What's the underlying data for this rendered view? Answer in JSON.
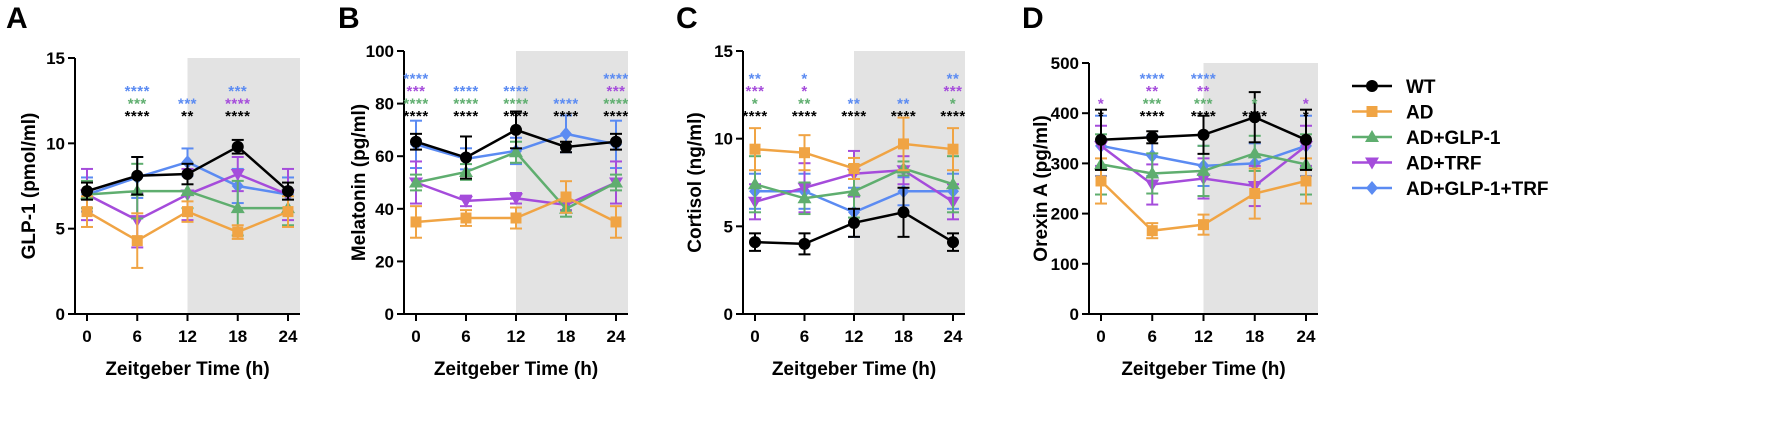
{
  "colors": {
    "WT": "#000000",
    "AD": "#F0A444",
    "AD+GLP-1": "#5FAE6F",
    "AD+TRF": "#A54CDB",
    "AD+GLP-1+TRF": "#5B8BF2",
    "shade": "#e3e3e3"
  },
  "legend": {
    "items": [
      {
        "key": "WT",
        "label": "WT",
        "marker": "circle"
      },
      {
        "key": "AD",
        "label": "AD",
        "marker": "square"
      },
      {
        "key": "AD+GLP-1",
        "label": "AD+GLP-1",
        "marker": "triangle-up"
      },
      {
        "key": "AD+TRF",
        "label": "AD+TRF",
        "marker": "triangle-down"
      },
      {
        "key": "AD+GLP-1+TRF",
        "label": "AD+GLP-1+TRF",
        "marker": "diamond"
      }
    ]
  },
  "chart_data": [
    {
      "panel": "A",
      "type": "line",
      "xlabel": "Zeitgeber Time (h)",
      "ylabel": "GLP-1 (pmol/ml)",
      "x": [
        0,
        6,
        12,
        18,
        24
      ],
      "ylim": [
        0,
        15
      ],
      "yticks": [
        0,
        5,
        10,
        15
      ],
      "shaded_x": [
        12,
        24
      ],
      "series": [
        {
          "name": "WT",
          "values": [
            7.2,
            8.1,
            8.2,
            9.8,
            7.2
          ],
          "errors": [
            0.5,
            1.1,
            0.6,
            0.4,
            0.5
          ],
          "marker": "circle"
        },
        {
          "name": "AD",
          "values": [
            6.0,
            4.3,
            6.0,
            4.8,
            6.0
          ],
          "errors": [
            0.9,
            1.6,
            0.6,
            0.4,
            0.9
          ],
          "marker": "square"
        },
        {
          "name": "AD+GLP-1",
          "values": [
            7.0,
            7.2,
            7.2,
            6.2,
            6.2
          ],
          "errors": [
            0.8,
            1.6,
            1.0,
            1.6,
            1.0
          ],
          "marker": "triangle-up"
        },
        {
          "name": "AD+TRF",
          "values": [
            7.0,
            5.5,
            7.0,
            8.2,
            7.0
          ],
          "errors": [
            1.5,
            1.6,
            1.5,
            1.0,
            1.5
          ],
          "marker": "triangle-down"
        },
        {
          "name": "AD+GLP-1+TRF",
          "values": [
            7.0,
            8.0,
            8.9,
            7.5,
            7.0
          ],
          "errors": [
            1.0,
            1.2,
            0.8,
            1.0,
            1.0
          ],
          "marker": "diamond"
        }
      ],
      "stars": [
        {
          "x": 6,
          "lines": [
            {
              "s": "****",
              "series": "AD+GLP-1+TRF"
            },
            {
              "s": "***",
              "series": "AD+GLP-1"
            },
            {
              "s": "****",
              "series": "WT"
            }
          ]
        },
        {
          "x": 12,
          "lines": [
            {
              "s": "***",
              "series": "AD+GLP-1+TRF"
            },
            {
              "s": "**",
              "series": "WT"
            }
          ]
        },
        {
          "x": 18,
          "lines": [
            {
              "s": "***",
              "series": "AD+GLP-1+TRF"
            },
            {
              "s": "****",
              "series": "AD+TRF"
            },
            {
              "s": "****",
              "series": "WT"
            }
          ]
        }
      ]
    },
    {
      "panel": "B",
      "type": "line",
      "xlabel": "Zeitgeber Time (h)",
      "ylabel": "Melatonin (pg/ml)",
      "x": [
        0,
        6,
        12,
        18,
        24
      ],
      "ylim": [
        0,
        100
      ],
      "yticks": [
        0,
        20,
        40,
        60,
        80,
        100
      ],
      "shaded_x": [
        12,
        24
      ],
      "series": [
        {
          "name": "WT",
          "values": [
            65.5,
            59.5,
            70.0,
            63.5,
            65.5
          ],
          "errors": [
            3,
            8,
            7,
            2,
            3
          ],
          "marker": "circle"
        },
        {
          "name": "AD",
          "values": [
            35,
            36.5,
            36.5,
            44.5,
            35
          ],
          "errors": [
            6,
            3,
            4,
            6,
            6
          ],
          "marker": "square"
        },
        {
          "name": "AD+GLP-1",
          "values": [
            50,
            54,
            61.5,
            40,
            50
          ],
          "errors": [
            3,
            3,
            4,
            3,
            3
          ],
          "marker": "triangle-up"
        },
        {
          "name": "AD+TRF",
          "values": [
            50,
            43,
            44,
            41.5,
            50
          ],
          "errors": [
            8,
            2,
            2,
            2,
            8
          ],
          "marker": "triangle-down"
        },
        {
          "name": "AD+GLP-1+TRF",
          "values": [
            64.5,
            59,
            62,
            68.5,
            64.5
          ],
          "errors": [
            9,
            4,
            5,
            7,
            9
          ],
          "marker": "diamond"
        }
      ],
      "stars": [
        {
          "x": 0,
          "lines": [
            {
              "s": "****",
              "series": "AD+GLP-1+TRF"
            },
            {
              "s": "***",
              "series": "AD+TRF"
            },
            {
              "s": "****",
              "series": "AD+GLP-1"
            },
            {
              "s": "****",
              "series": "WT"
            }
          ]
        },
        {
          "x": 6,
          "lines": [
            {
              "s": "****",
              "series": "AD+GLP-1+TRF"
            },
            {
              "s": "****",
              "series": "AD+GLP-1"
            },
            {
              "s": "****",
              "series": "WT"
            }
          ]
        },
        {
          "x": 12,
          "lines": [
            {
              "s": "****",
              "series": "AD+GLP-1+TRF"
            },
            {
              "s": "****",
              "series": "AD+GLP-1"
            },
            {
              "s": "****",
              "series": "WT"
            }
          ]
        },
        {
          "x": 18,
          "lines": [
            {
              "s": "****",
              "series": "AD+GLP-1+TRF"
            },
            {
              "s": "****",
              "series": "WT"
            }
          ]
        },
        {
          "x": 24,
          "lines": [
            {
              "s": "****",
              "series": "AD+GLP-1+TRF"
            },
            {
              "s": "***",
              "series": "AD+TRF"
            },
            {
              "s": "****",
              "series": "AD+GLP-1"
            },
            {
              "s": "****",
              "series": "WT"
            }
          ]
        }
      ]
    },
    {
      "panel": "C",
      "type": "line",
      "xlabel": "Zeitgeber Time (h)",
      "ylabel": "Cortisol (ng/ml)",
      "x": [
        0,
        6,
        12,
        18,
        24
      ],
      "ylim": [
        0,
        15
      ],
      "yticks": [
        0,
        5,
        10,
        15
      ],
      "shaded_x": [
        12,
        24
      ],
      "series": [
        {
          "name": "WT",
          "values": [
            4.1,
            4.0,
            5.2,
            5.8,
            4.1
          ],
          "errors": [
            0.5,
            0.6,
            0.8,
            1.4,
            0.5
          ],
          "marker": "circle"
        },
        {
          "name": "AD",
          "values": [
            9.4,
            9.2,
            8.3,
            9.7,
            9.4
          ],
          "errors": [
            1.2,
            1.0,
            0.6,
            1.5,
            1.2
          ],
          "marker": "square"
        },
        {
          "name": "AD+GLP-1",
          "values": [
            7.4,
            6.6,
            7.0,
            8.3,
            7.4
          ],
          "errors": [
            1.6,
            0.9,
            1.5,
            0.4,
            1.6
          ],
          "marker": "triangle-up"
        },
        {
          "name": "AD+TRF",
          "values": [
            6.4,
            7.2,
            8.0,
            8.2,
            6.4
          ],
          "errors": [
            1.0,
            1.4,
            1.3,
            0.8,
            1.0
          ],
          "marker": "triangle-down"
        },
        {
          "name": "AD+GLP-1+TRF",
          "values": [
            7.0,
            7.0,
            5.8,
            7.0,
            7.0
          ],
          "errors": [
            1.0,
            1.0,
            1.4,
            0.8,
            1.0
          ],
          "marker": "diamond"
        }
      ],
      "stars": [
        {
          "x": 0,
          "lines": [
            {
              "s": "**",
              "series": "AD+GLP-1+TRF"
            },
            {
              "s": "***",
              "series": "AD+TRF"
            },
            {
              "s": "*",
              "series": "AD+GLP-1"
            },
            {
              "s": "****",
              "series": "WT"
            }
          ]
        },
        {
          "x": 6,
          "lines": [
            {
              "s": "*",
              "series": "AD+GLP-1+TRF"
            },
            {
              "s": "*",
              "series": "AD+TRF"
            },
            {
              "s": "**",
              "series": "AD+GLP-1"
            },
            {
              "s": "****",
              "series": "WT"
            }
          ]
        },
        {
          "x": 12,
          "lines": [
            {
              "s": "**",
              "series": "AD+GLP-1+TRF"
            },
            {
              "s": "****",
              "series": "WT"
            }
          ]
        },
        {
          "x": 18,
          "lines": [
            {
              "s": "**",
              "series": "AD+GLP-1+TRF"
            },
            {
              "s": "****",
              "series": "WT"
            }
          ]
        },
        {
          "x": 24,
          "lines": [
            {
              "s": "**",
              "series": "AD+GLP-1+TRF"
            },
            {
              "s": "***",
              "series": "AD+TRF"
            },
            {
              "s": "*",
              "series": "AD+GLP-1"
            },
            {
              "s": "****",
              "series": "WT"
            }
          ]
        }
      ]
    },
    {
      "panel": "D",
      "type": "line",
      "xlabel": "Zeitgeber Time (h)",
      "ylabel": "Orexin A (pg/ml)",
      "x": [
        0,
        6,
        12,
        18,
        24
      ],
      "ylim": [
        0,
        500
      ],
      "yticks": [
        0,
        100,
        200,
        300,
        400,
        500
      ],
      "shaded_x": [
        12,
        24
      ],
      "series": [
        {
          "name": "WT",
          "values": [
            347,
            352,
            357,
            392,
            347
          ],
          "errors": [
            60,
            12,
            38,
            50,
            60
          ],
          "marker": "circle"
        },
        {
          "name": "AD",
          "values": [
            265,
            166,
            178,
            240,
            265
          ],
          "errors": [
            45,
            15,
            20,
            50,
            45
          ],
          "marker": "square"
        },
        {
          "name": "AD+GLP-1",
          "values": [
            298,
            280,
            285,
            320,
            298
          ],
          "errors": [
            60,
            40,
            50,
            35,
            60
          ],
          "marker": "triangle-up"
        },
        {
          "name": "AD+TRF",
          "values": [
            335,
            258,
            270,
            255,
            335
          ],
          "errors": [
            40,
            40,
            40,
            40,
            40
          ],
          "marker": "triangle-down"
        },
        {
          "name": "AD+GLP-1+TRF",
          "values": [
            335,
            315,
            295,
            300,
            335
          ],
          "errors": [
            60,
            40,
            40,
            40,
            60
          ],
          "marker": "diamond"
        }
      ],
      "stars": [
        {
          "x": 0,
          "lines": [
            {
              "s": "*",
              "series": "AD+TRF"
            },
            {
              "s": "*",
              "series": "WT"
            }
          ]
        },
        {
          "x": 6,
          "lines": [
            {
              "s": "****",
              "series": "AD+GLP-1+TRF"
            },
            {
              "s": "**",
              "series": "AD+TRF"
            },
            {
              "s": "***",
              "series": "AD+GLP-1"
            },
            {
              "s": "****",
              "series": "WT"
            }
          ]
        },
        {
          "x": 12,
          "lines": [
            {
              "s": "****",
              "series": "AD+GLP-1+TRF"
            },
            {
              "s": "**",
              "series": "AD+TRF"
            },
            {
              "s": "***",
              "series": "AD+GLP-1"
            },
            {
              "s": "****",
              "series": "WT"
            }
          ]
        },
        {
          "x": 18,
          "lines": [
            {
              "s": "*",
              "series": "AD+GLP-1"
            },
            {
              "s": "****",
              "series": "WT"
            }
          ]
        },
        {
          "x": 24,
          "lines": [
            {
              "s": "*",
              "series": "AD+TRF"
            },
            {
              "s": "*",
              "series": "WT"
            }
          ]
        }
      ]
    }
  ]
}
